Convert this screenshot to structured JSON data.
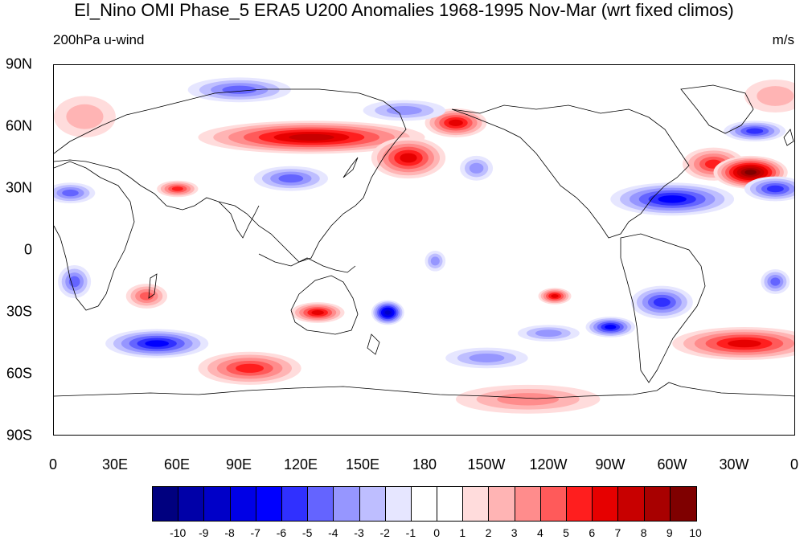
{
  "title": "El_Nino OMI Phase_5 ERA5 U200 Anomalies 1968-1995 Nov-Mar (wrt fixed climos)",
  "subtitle_left": "200hPa u-wind",
  "subtitle_right": "m/s",
  "y_labels": [
    "90N",
    "60N",
    "30N",
    "0",
    "30S",
    "60S",
    "90S"
  ],
  "x_labels": [
    "0",
    "30E",
    "60E",
    "90E",
    "120E",
    "150E",
    "180",
    "150W",
    "120W",
    "90W",
    "60W",
    "30W",
    "0"
  ],
  "colorbar": {
    "labels": [
      "-10",
      "-9",
      "-8",
      "-7",
      "-6",
      "-5",
      "-4",
      "-3",
      "-2",
      "-1",
      "0",
      "1",
      "2",
      "3",
      "4",
      "5",
      "6",
      "7",
      "8",
      "9",
      "10"
    ],
    "colors": [
      "#00007f",
      "#0000a8",
      "#0000c8",
      "#0000e6",
      "#0000ff",
      "#3030ff",
      "#6464ff",
      "#9696ff",
      "#bebeff",
      "#e6e6ff",
      "#ffffff",
      "#ffffff",
      "#ffdcdc",
      "#ffb4b4",
      "#ff8c8c",
      "#ff5a5a",
      "#ff1e1e",
      "#e60000",
      "#c80000",
      "#a80000",
      "#7f0000"
    ]
  },
  "map_data": {
    "projection": "cylindrical-equidistant",
    "lon_range": [
      0,
      360
    ],
    "lat_range": [
      -90,
      90
    ],
    "variable": "200hPa u-wind anomaly",
    "units": "m/s",
    "anomalies": [
      {
        "lon": 125,
        "lat": 55,
        "rx": 55,
        "ry": 8,
        "value": 7
      },
      {
        "lon": 172,
        "lat": 45,
        "rx": 18,
        "ry": 10,
        "value": 6
      },
      {
        "lon": 195,
        "lat": 62,
        "rx": 15,
        "ry": 7,
        "value": 6
      },
      {
        "lon": 320,
        "lat": 42,
        "rx": 15,
        "ry": 8,
        "value": 5
      },
      {
        "lon": 338,
        "lat": 38,
        "rx": 18,
        "ry": 8,
        "value": 9
      },
      {
        "lon": 60,
        "lat": 30,
        "rx": 10,
        "ry": 4,
        "value": 5
      },
      {
        "lon": 128,
        "lat": -30,
        "rx": 13,
        "ry": 5,
        "value": 6
      },
      {
        "lon": 95,
        "lat": -57,
        "rx": 25,
        "ry": 8,
        "value": 5
      },
      {
        "lon": 45,
        "lat": -22,
        "rx": 10,
        "ry": 6,
        "value": 4
      },
      {
        "lon": 243,
        "lat": -22,
        "rx": 8,
        "ry": 4,
        "value": 6
      },
      {
        "lon": 335,
        "lat": -45,
        "rx": 35,
        "ry": 8,
        "value": 6
      },
      {
        "lon": 230,
        "lat": -72,
        "rx": 35,
        "ry": 7,
        "value": 3
      },
      {
        "lon": 15,
        "lat": 65,
        "rx": 15,
        "ry": 10,
        "value": 2
      },
      {
        "lon": 350,
        "lat": 75,
        "rx": 15,
        "ry": 8,
        "value": 2
      },
      {
        "lon": 115,
        "lat": 35,
        "rx": 18,
        "ry": 6,
        "value": -4
      },
      {
        "lon": 90,
        "lat": 78,
        "rx": 25,
        "ry": 6,
        "value": -4
      },
      {
        "lon": 170,
        "lat": 68,
        "rx": 20,
        "ry": 5,
        "value": -3
      },
      {
        "lon": 300,
        "lat": 25,
        "rx": 30,
        "ry": 8,
        "value": -6
      },
      {
        "lon": 350,
        "lat": 30,
        "rx": 15,
        "ry": 6,
        "value": -5
      },
      {
        "lon": 8,
        "lat": 28,
        "rx": 12,
        "ry": 5,
        "value": -4
      },
      {
        "lon": 340,
        "lat": 58,
        "rx": 15,
        "ry": 5,
        "value": -5
      },
      {
        "lon": 50,
        "lat": -45,
        "rx": 25,
        "ry": 7,
        "value": -6
      },
      {
        "lon": 162,
        "lat": -30,
        "rx": 8,
        "ry": 6,
        "value": -8
      },
      {
        "lon": 270,
        "lat": -37,
        "rx": 12,
        "ry": 5,
        "value": -6
      },
      {
        "lon": 295,
        "lat": -25,
        "rx": 15,
        "ry": 8,
        "value": -5
      },
      {
        "lon": 205,
        "lat": 40,
        "rx": 8,
        "ry": 6,
        "value": -3
      },
      {
        "lon": 185,
        "lat": -5,
        "rx": 5,
        "ry": 5,
        "value": -3
      },
      {
        "lon": 10,
        "lat": -15,
        "rx": 8,
        "ry": 8,
        "value": -4
      },
      {
        "lon": 350,
        "lat": -15,
        "rx": 7,
        "ry": 6,
        "value": -4
      },
      {
        "lon": 210,
        "lat": -52,
        "rx": 20,
        "ry": 5,
        "value": -3
      },
      {
        "lon": 240,
        "lat": -40,
        "rx": 15,
        "ry": 4,
        "value": -3
      }
    ]
  }
}
